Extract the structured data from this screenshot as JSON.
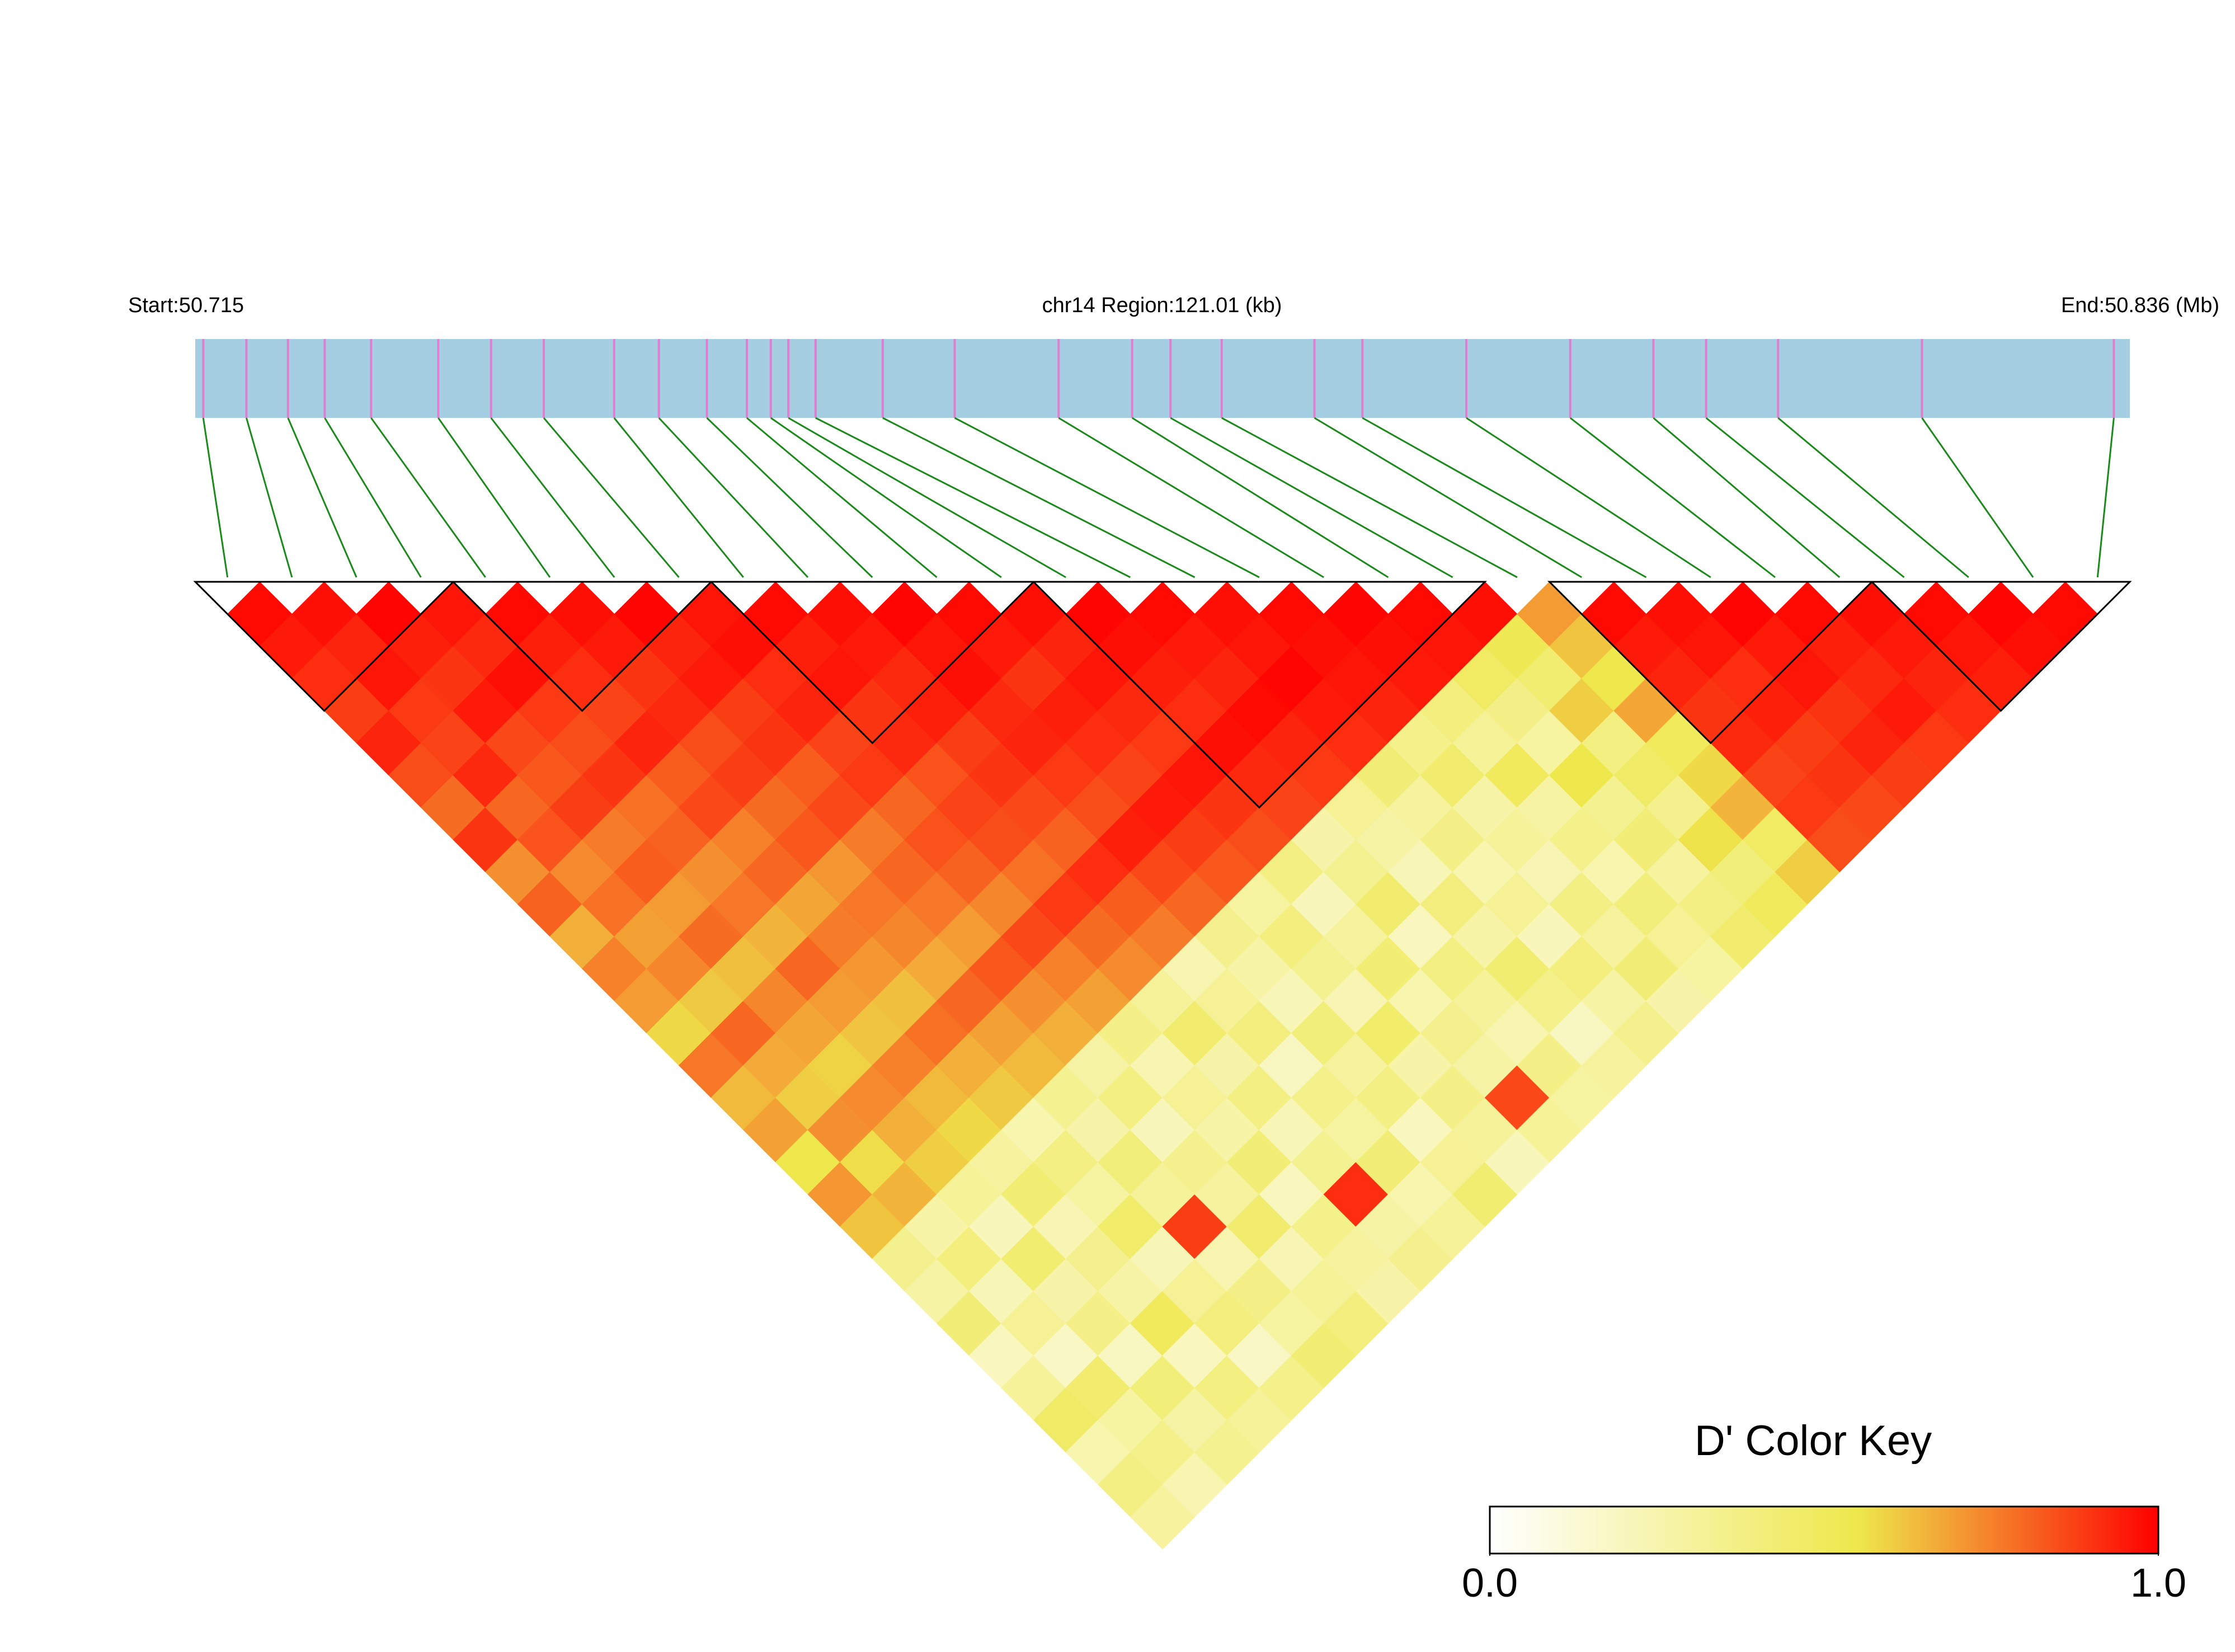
{
  "chart_data": {
    "type": "ld_heatmap",
    "start_label": "Start:50.715",
    "region_label": "chr14 Region:121.01 (kb)",
    "end_label": "End:50.836 (Mb)",
    "xlim": [
      50.715,
      50.836
    ],
    "snp_positions": [
      50.7155,
      50.7182,
      50.7208,
      50.7231,
      50.726,
      50.7302,
      50.7335,
      50.7368,
      50.7412,
      50.744,
      50.747,
      50.7495,
      50.751,
      50.7521,
      50.7538,
      50.758,
      50.7625,
      50.769,
      50.7736,
      50.776,
      50.7792,
      50.785,
      50.788,
      50.7945,
      50.801,
      50.8062,
      50.8095,
      50.814,
      50.823,
      50.835
    ],
    "bar_color": "#a6cee3",
    "marker_color": "#e07ed0",
    "link_color": "#1a8a1a",
    "d_prime": [
      [
        0.98,
        0.95,
        0.91,
        0.88,
        0.93,
        0.85,
        0.79,
        0.9,
        0.72,
        0.81,
        0.66,
        0.75,
        0.7,
        0.58,
        0.77,
        0.64,
        0.69,
        0.55,
        0.71,
        0.62,
        0.35,
        0.28,
        0.42,
        0.2,
        0.31,
        0.47,
        0.25,
        0.38,
        0.3
      ],
      [
        0.97,
        0.93,
        0.96,
        0.89,
        0.87,
        0.92,
        0.8,
        0.84,
        0.73,
        0.78,
        0.69,
        0.74,
        0.61,
        0.8,
        0.67,
        0.6,
        0.72,
        0.57,
        0.65,
        0.27,
        0.4,
        0.22,
        0.33,
        0.18,
        0.45,
        0.29,
        0.36,
        0.24
      ],
      [
        0.99,
        0.94,
        0.9,
        0.95,
        0.86,
        0.83,
        0.88,
        0.76,
        0.82,
        0.7,
        0.79,
        0.63,
        0.74,
        0.68,
        0.59,
        0.73,
        0.66,
        0.6,
        0.32,
        0.21,
        0.44,
        0.26,
        0.37,
        0.19,
        0.41,
        0.28,
        0.34
      ],
      [
        0.96,
        0.92,
        0.97,
        0.89,
        0.85,
        0.9,
        0.78,
        0.81,
        0.72,
        0.77,
        0.65,
        0.8,
        0.7,
        0.62,
        0.75,
        0.64,
        0.58,
        0.3,
        0.43,
        0.23,
        0.35,
        0.27,
        0.5,
        0.2,
        0.39,
        0.31
      ],
      [
        0.98,
        0.94,
        0.91,
        0.87,
        0.93,
        0.82,
        0.86,
        0.75,
        0.8,
        0.68,
        0.76,
        0.71,
        0.63,
        0.78,
        0.66,
        0.61,
        0.25,
        0.38,
        0.29,
        0.46,
        0.22,
        0.33,
        0.4,
        0.18,
        0.36
      ],
      [
        0.97,
        0.95,
        0.9,
        0.92,
        0.85,
        0.88,
        0.79,
        0.83,
        0.71,
        0.77,
        0.74,
        0.67,
        0.8,
        0.69,
        0.64,
        0.34,
        0.26,
        0.41,
        0.31,
        0.88,
        0.24,
        0.37,
        0.29,
        0.43
      ],
      [
        0.99,
        0.93,
        0.95,
        0.88,
        0.9,
        0.82,
        0.86,
        0.76,
        0.8,
        0.77,
        0.7,
        0.83,
        0.72,
        0.66,
        0.28,
        0.39,
        0.21,
        0.35,
        0.3,
        0.45,
        0.23,
        0.32,
        0.4
      ],
      [
        0.96,
        0.97,
        0.91,
        0.93,
        0.87,
        0.89,
        0.8,
        0.84,
        0.81,
        0.74,
        0.86,
        0.75,
        0.69,
        0.37,
        0.24,
        0.33,
        0.27,
        0.42,
        0.2,
        0.36,
        0.3,
        0.26
      ],
      [
        0.98,
        0.94,
        0.96,
        0.9,
        0.92,
        0.84,
        0.87,
        0.85,
        0.78,
        0.89,
        0.79,
        0.73,
        0.31,
        0.45,
        0.26,
        0.38,
        0.22,
        0.34,
        0.91,
        0.28,
        0.35
      ],
      [
        0.97,
        0.95,
        0.92,
        0.94,
        0.88,
        0.9,
        0.86,
        0.81,
        0.91,
        0.82,
        0.76,
        0.24,
        0.33,
        0.4,
        0.19,
        0.36,
        0.29,
        0.42,
        0.25,
        0.31
      ],
      [
        0.99,
        0.96,
        0.97,
        0.92,
        0.93,
        0.89,
        0.85,
        0.94,
        0.86,
        0.8,
        0.35,
        0.27,
        0.22,
        0.41,
        0.3,
        0.38,
        0.2,
        0.33,
        0.44
      ],
      [
        0.98,
        0.95,
        0.9,
        0.94,
        0.91,
        0.87,
        0.95,
        0.88,
        0.83,
        0.29,
        0.4,
        0.34,
        0.23,
        0.46,
        0.26,
        0.37,
        0.31,
        0.21
      ],
      [
        0.97,
        0.93,
        0.96,
        0.92,
        0.89,
        0.96,
        0.9,
        0.85,
        0.38,
        0.21,
        0.3,
        0.43,
        0.25,
        0.35,
        0.28,
        0.86,
        0.32
      ],
      [
        0.99,
        0.97,
        0.94,
        0.91,
        0.97,
        0.92,
        0.87,
        0.26,
        0.34,
        0.45,
        0.2,
        0.39,
        0.31,
        0.24,
        0.37,
        0.29
      ],
      [
        0.98,
        0.95,
        0.93,
        0.98,
        0.93,
        0.89,
        0.33,
        0.28,
        0.22,
        0.4,
        0.27,
        0.44,
        0.36,
        0.19,
        0.3
      ],
      [
        0.97,
        0.96,
        0.99,
        0.95,
        0.91,
        0.42,
        0.3,
        0.37,
        0.25,
        0.33,
        0.21,
        0.4,
        0.28,
        0.35
      ],
      [
        0.98,
        0.97,
        0.96,
        0.93,
        0.36,
        0.45,
        0.27,
        0.31,
        0.23,
        0.38,
        0.3,
        0.42,
        0.26
      ],
      [
        0.99,
        0.97,
        0.95,
        0.4,
        0.32,
        0.5,
        0.28,
        0.36,
        0.25,
        0.41,
        0.33,
        0.29
      ],
      [
        0.98,
        0.96,
        0.48,
        0.37,
        0.29,
        0.55,
        0.34,
        0.42,
        0.3,
        0.38,
        0.45
      ],
      [
        0.97,
        0.52,
        0.44,
        0.6,
        0.39,
        0.47,
        0.35,
        0.56,
        0.41,
        0.5
      ],
      [
        0.7,
        0.62,
        0.55,
        0.68,
        0.5,
        0.58,
        0.65,
        0.48,
        0.6
      ],
      [
        0.98,
        0.95,
        0.93,
        0.9,
        0.92,
        0.87,
        0.89,
        0.85
      ],
      [
        0.97,
        0.96,
        0.91,
        0.94,
        0.88,
        0.9,
        0.86
      ],
      [
        0.99,
        0.95,
        0.96,
        0.9,
        0.93,
        0.88
      ],
      [
        0.98,
        0.94,
        0.92,
        0.95,
        0.89
      ],
      [
        0.97,
        0.95,
        0.93,
        0.91
      ],
      [
        0.98,
        0.96,
        0.94
      ],
      [
        0.99,
        0.97
      ],
      [
        0.98
      ]
    ],
    "blocks": [
      [
        0,
        3
      ],
      [
        4,
        7
      ],
      [
        8,
        12
      ],
      [
        13,
        19
      ],
      [
        21,
        25
      ],
      [
        26,
        29
      ]
    ],
    "key_title": "D' Color Key",
    "key_lim": [
      0,
      1
    ],
    "key_ticks": [
      {
        "value": 0,
        "label": "0.0"
      },
      {
        "value": 1,
        "label": "1.0"
      }
    ],
    "color_stops": [
      {
        "value": 0,
        "color": "#ffffff"
      },
      {
        "value": 0.55,
        "color": "#eee84c"
      },
      {
        "value": 1,
        "color": "#ff0000"
      }
    ]
  }
}
